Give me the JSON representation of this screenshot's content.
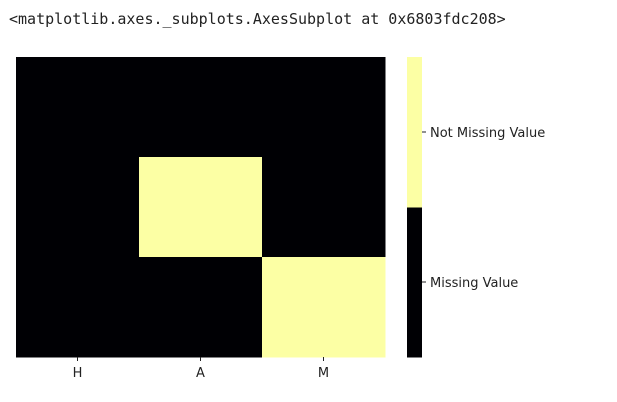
{
  "output_text": "<matplotlib.axes._subplots.AxesSubplot at 0x6803fdc208>",
  "chart_data": {
    "type": "heatmap",
    "title": "",
    "xlabel": "",
    "ylabel": "",
    "x_categories": [
      "H",
      "A",
      "M"
    ],
    "rows": 3,
    "values": [
      [
        0,
        0,
        0
      ],
      [
        0,
        1,
        0
      ],
      [
        0,
        0,
        1
      ]
    ],
    "colormap": {
      "0": "#000004",
      "1": "#fcffa4"
    },
    "colorbar": {
      "labels": [
        "Missing Value",
        "Not Missing Value"
      ],
      "colors": [
        "#000004",
        "#fcffa4"
      ]
    }
  }
}
